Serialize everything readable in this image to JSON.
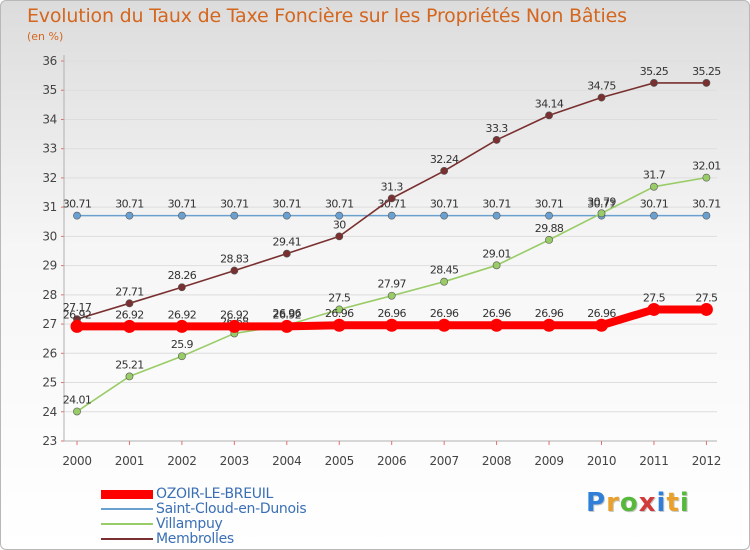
{
  "chart_data": {
    "type": "line",
    "title": "Evolution du Taux de Taxe Foncière sur les Propriétés Non Bâties",
    "subtitle": "(en %)",
    "xlabel": "",
    "ylabel": "",
    "x": [
      "2000",
      "2001",
      "2002",
      "2003",
      "2004",
      "2005",
      "2006",
      "2007",
      "2008",
      "2009",
      "2010",
      "2011",
      "2012"
    ],
    "ylim": [
      23,
      36
    ],
    "yticks": [
      "23",
      "24",
      "25",
      "26",
      "27",
      "28",
      "29",
      "30",
      "31",
      "32",
      "33",
      "34",
      "35",
      "36"
    ],
    "grid": "horizontal",
    "legend_position": "bottom-left",
    "series": [
      {
        "name": "OZOIR-LE-BREUIL",
        "color": "#ff0000",
        "values": [
          26.92,
          26.92,
          26.92,
          26.92,
          26.92,
          26.96,
          26.96,
          26.96,
          26.96,
          26.96,
          26.96,
          27.5,
          27.5
        ],
        "labels": [
          "26.92",
          "26.92",
          "26.92",
          "26.92",
          "26.92",
          "26.96",
          "26.96",
          "26.96",
          "26.96",
          "26.96",
          "26.96",
          "27.5",
          "27.5"
        ]
      },
      {
        "name": "Saint-Cloud-en-Dunois",
        "color": "#6aa0d0",
        "values": [
          30.71,
          30.71,
          30.71,
          30.71,
          30.71,
          30.71,
          30.71,
          30.71,
          30.71,
          30.71,
          30.71,
          30.71,
          30.71
        ],
        "labels": [
          "30.71",
          "30.71",
          "30.71",
          "30.71",
          "30.71",
          "30.71",
          "30.71",
          "30.71",
          "30.71",
          "30.71",
          "30.71",
          "30.71",
          "30.71"
        ]
      },
      {
        "name": "Villampuy",
        "color": "#99cc66",
        "values": [
          24.01,
          25.21,
          25.9,
          26.68,
          26.96,
          27.5,
          27.97,
          28.45,
          29.01,
          29.88,
          30.79,
          31.7,
          32.01
        ],
        "labels": [
          "24.01",
          "25.21",
          "25.9",
          "26.68",
          "26.96",
          "27.5",
          "27.97",
          "28.45",
          "29.01",
          "29.88",
          "30.79",
          "31.7",
          "32.01"
        ]
      },
      {
        "name": "Membrolles",
        "color": "#7a3030",
        "values": [
          27.17,
          27.71,
          28.26,
          28.83,
          29.41,
          30,
          31.3,
          32.24,
          33.3,
          34.14,
          34.75,
          35.25,
          35.25
        ],
        "labels": [
          "27.17",
          "27.71",
          "28.26",
          "28.83",
          "29.41",
          "30",
          "31.3",
          "32.24",
          "33.3",
          "34.14",
          "34.75",
          "35.25",
          "35.25"
        ]
      }
    ]
  },
  "brand": {
    "letters": [
      "P",
      "r",
      "o",
      "x",
      "i",
      "t",
      "i"
    ],
    "colors": [
      "#2f7fd8",
      "#e9a12b",
      "#56b93c",
      "#d23b3b",
      "#2f7fd8",
      "#e9a12b",
      "#56b93c"
    ]
  }
}
